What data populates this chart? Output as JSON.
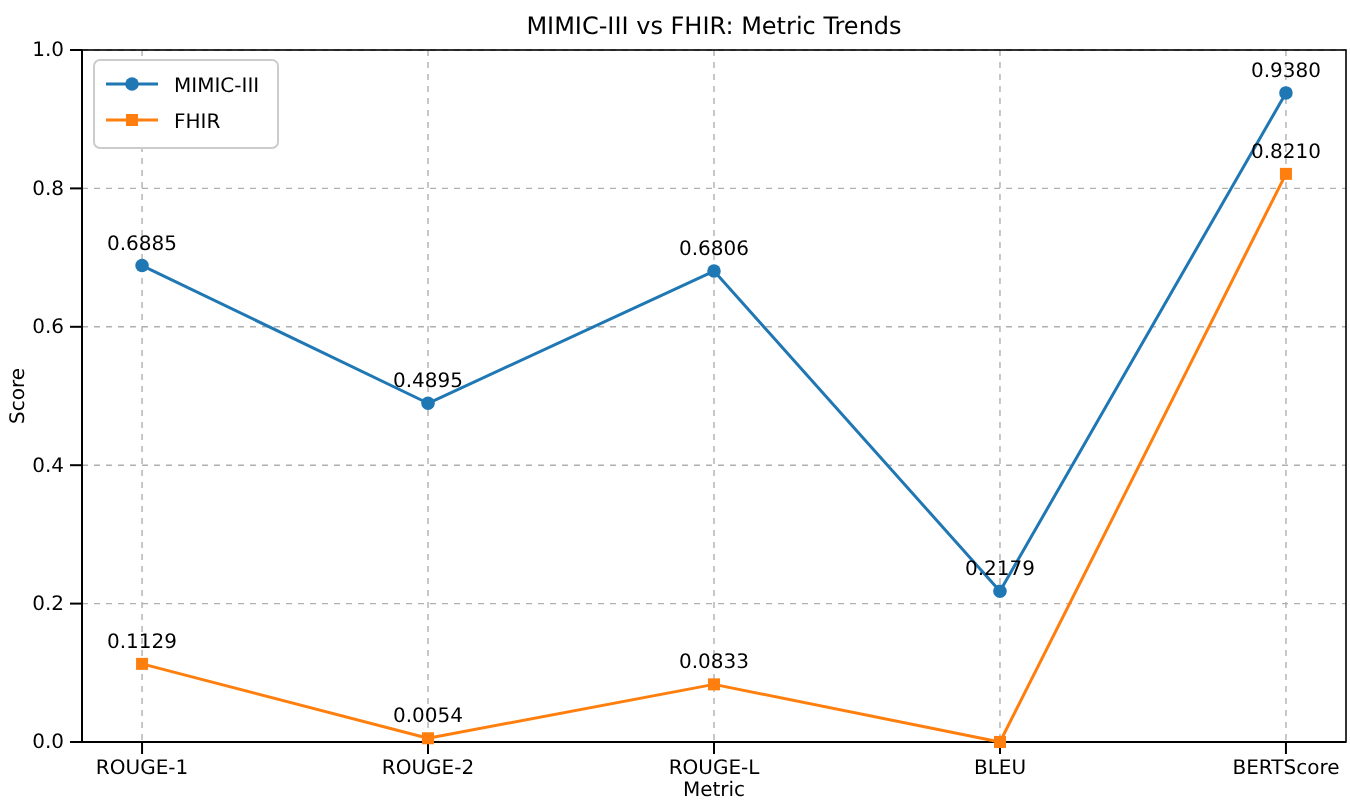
{
  "chart_data": {
    "type": "line",
    "title": "MIMIC-III vs FHIR: Metric Trends",
    "xlabel": "Metric",
    "ylabel": "Score",
    "categories": [
      "ROUGE-1",
      "ROUGE-2",
      "ROUGE-L",
      "BLEU",
      "BERTScore"
    ],
    "series": [
      {
        "name": "MIMIC-III",
        "color": "#1f77b4",
        "marker": "circle",
        "values": [
          0.6885,
          0.4895,
          0.6806,
          0.2179,
          0.938
        ],
        "value_labels": [
          "0.6885",
          "0.4895",
          "0.6806",
          "0.2179",
          "0.9380"
        ]
      },
      {
        "name": "FHIR",
        "color": "#ff7f0e",
        "marker": "square",
        "values": [
          0.1129,
          0.0054,
          0.0833,
          0.0,
          0.821
        ],
        "value_labels": [
          "0.1129",
          "0.0054",
          "0.0833",
          null,
          "0.8210"
        ]
      }
    ],
    "ylim": [
      0,
      1
    ],
    "yticks": [
      {
        "value": 0,
        "label": "0.0"
      },
      {
        "value": 0.2,
        "label": "0.2"
      },
      {
        "value": 0.4,
        "label": "0.4"
      },
      {
        "value": 0.6,
        "label": "0.6"
      },
      {
        "value": 0.8,
        "label": "0.8"
      },
      {
        "value": 1,
        "label": "1.0"
      }
    ],
    "grid": true,
    "legend": "top left",
    "line_style": "solid"
  }
}
